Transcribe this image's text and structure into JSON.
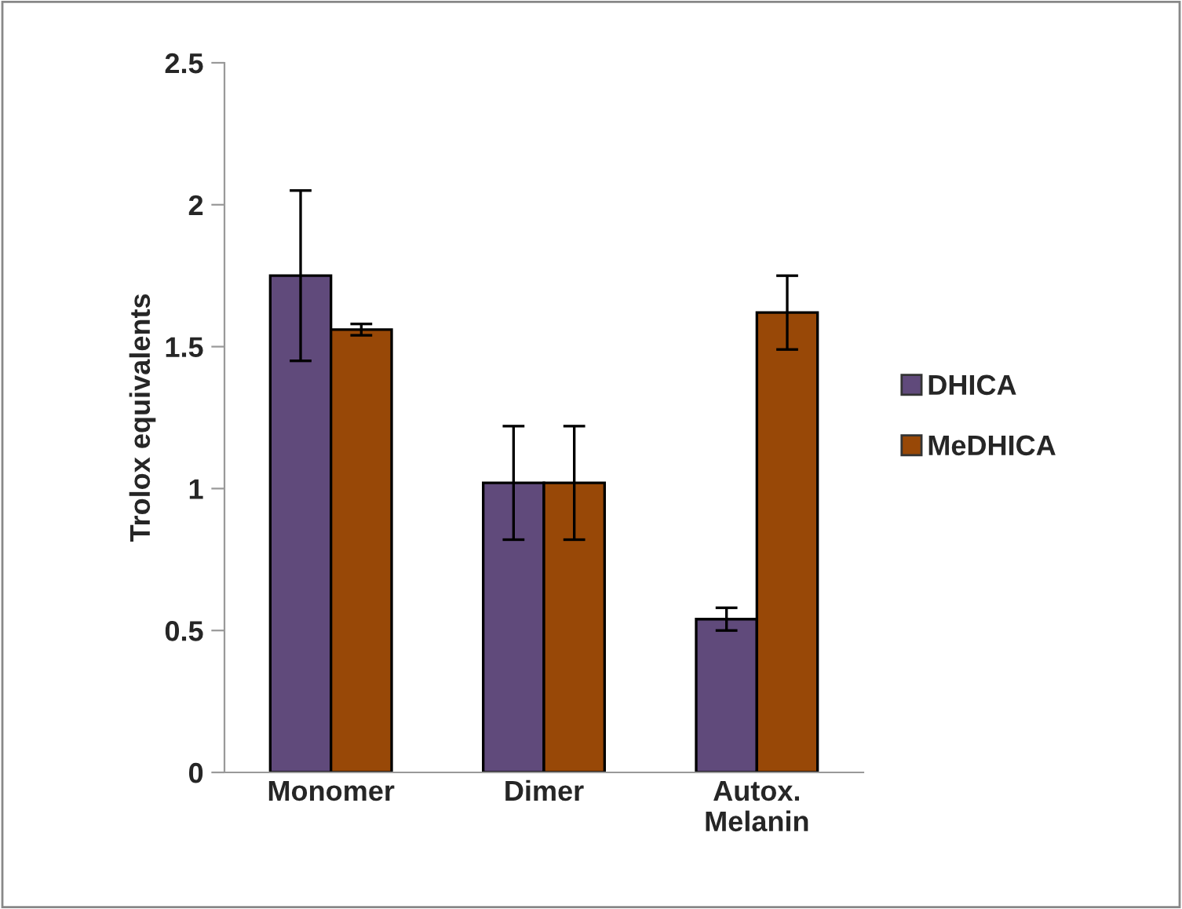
{
  "chart_data": {
    "type": "bar",
    "ylabel": "Trolox equivalents",
    "categories": [
      "Monomer",
      "Dimer",
      "Autox.\nMelanin"
    ],
    "series": [
      {
        "name": "DHICA",
        "color": "#604a7b",
        "values": [
          1.75,
          1.02,
          0.54
        ],
        "errors": [
          0.3,
          0.2,
          0.04
        ]
      },
      {
        "name": "MeDHICA",
        "color": "#984807",
        "values": [
          1.56,
          1.02,
          1.62
        ],
        "errors": [
          0.02,
          0.2,
          0.13
        ]
      }
    ],
    "ylim": [
      0,
      2.5
    ],
    "yticks": [
      0,
      0.5,
      1,
      1.5,
      2,
      2.5
    ],
    "grid": false,
    "legend": "right"
  }
}
